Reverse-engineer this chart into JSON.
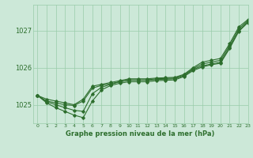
{
  "title": "Graphe pression niveau de la mer (hPa)",
  "bg_color": "#cce8d8",
  "grid_color": "#99ccaa",
  "line_color": "#2d6e2d",
  "xlim": [
    -0.5,
    23
  ],
  "ylim": [
    1024.5,
    1027.7
  ],
  "yticks": [
    1025,
    1026,
    1027
  ],
  "xticks": [
    0,
    1,
    2,
    3,
    4,
    5,
    6,
    7,
    8,
    9,
    10,
    11,
    12,
    13,
    14,
    15,
    16,
    17,
    18,
    19,
    20,
    21,
    22,
    23
  ],
  "line1": [
    1025.25,
    1025.15,
    1025.1,
    1025.05,
    1025.0,
    1025.15,
    1025.5,
    1025.55,
    1025.6,
    1025.65,
    1025.7,
    1025.7,
    1025.7,
    1025.72,
    1025.73,
    1025.74,
    1025.82,
    1026.0,
    1026.15,
    1026.2,
    1026.25,
    1026.65,
    1027.1,
    1027.3
  ],
  "line2": [
    1025.25,
    1025.1,
    1025.05,
    1025.0,
    1024.98,
    1025.1,
    1025.45,
    1025.52,
    1025.57,
    1025.62,
    1025.67,
    1025.67,
    1025.67,
    1025.7,
    1025.71,
    1025.72,
    1025.8,
    1025.97,
    1026.1,
    1026.15,
    1026.2,
    1026.6,
    1027.05,
    1027.27
  ],
  "line3": [
    1025.25,
    1025.08,
    1025.0,
    1024.92,
    1024.85,
    1024.82,
    1025.3,
    1025.47,
    1025.55,
    1025.62,
    1025.66,
    1025.66,
    1025.66,
    1025.68,
    1025.69,
    1025.7,
    1025.78,
    1025.95,
    1026.05,
    1026.1,
    1026.15,
    1026.55,
    1027.0,
    1027.25
  ],
  "line4": [
    1025.25,
    1025.05,
    1024.92,
    1024.82,
    1024.72,
    1024.65,
    1025.1,
    1025.4,
    1025.52,
    1025.58,
    1025.62,
    1025.62,
    1025.62,
    1025.65,
    1025.66,
    1025.67,
    1025.76,
    1025.92,
    1026.02,
    1026.08,
    1026.12,
    1026.52,
    1026.98,
    1027.22
  ]
}
